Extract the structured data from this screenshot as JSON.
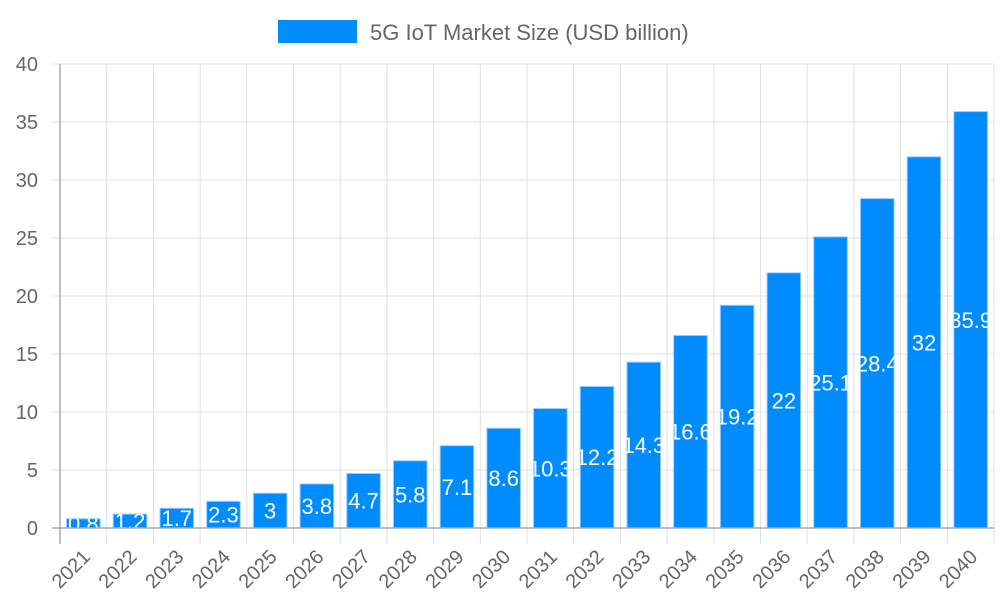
{
  "chart_data": {
    "type": "bar",
    "title": "",
    "xlabel": "",
    "ylabel": "",
    "ylim": [
      0,
      40
    ],
    "yticks": [
      0,
      5,
      10,
      15,
      20,
      25,
      30,
      35,
      40
    ],
    "grid": true,
    "legend_position": "top",
    "categories": [
      "2021",
      "2022",
      "2023",
      "2024",
      "2025",
      "2026",
      "2027",
      "2028",
      "2029",
      "2030",
      "2031",
      "2032",
      "2033",
      "2034",
      "2035",
      "2036",
      "2037",
      "2038",
      "2039",
      "2040"
    ],
    "series": [
      {
        "name": "5G IoT Market Size (USD billion)",
        "color": "#008cff",
        "values": [
          0.8,
          1.2,
          1.7,
          2.3,
          3,
          3.8,
          4.7,
          5.8,
          7.1,
          8.6,
          10.3,
          12.2,
          14.3,
          16.6,
          19.2,
          22,
          25.1,
          28.4,
          32,
          35.9
        ]
      }
    ],
    "data_labels": true
  }
}
